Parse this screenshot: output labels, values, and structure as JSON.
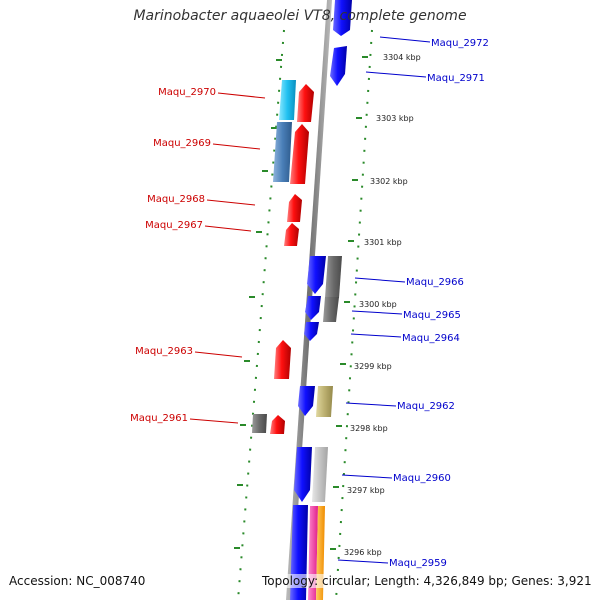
{
  "title": "Marinobacter aquaeolei VT8, complete genome",
  "accession": "Accession: NC_008740",
  "topology": "Topology: circular; Length: 4,326,849 bp; Genes: 3,921",
  "colors": {
    "backbone": "#808080",
    "forward_label": "#0000cc",
    "reverse_label": "#cc0000",
    "gc_ticks": "#2a8a2a"
  },
  "ticks": [
    {
      "label": "3304 kbp"
    },
    {
      "label": "3303 kbp"
    },
    {
      "label": "3302 kbp"
    },
    {
      "label": "3301 kbp"
    },
    {
      "label": "3300 kbp"
    },
    {
      "label": "3299 kbp"
    },
    {
      "label": "3298 kbp"
    },
    {
      "label": "3297 kbp"
    },
    {
      "label": "3296 kbp"
    }
  ],
  "gene_labels_forward": [
    {
      "name": "Maqu_2972"
    },
    {
      "name": "Maqu_2971"
    },
    {
      "name": "Maqu_2966"
    },
    {
      "name": "Maqu_2965"
    },
    {
      "name": "Maqu_2964"
    },
    {
      "name": "Maqu_2962"
    },
    {
      "name": "Maqu_2960"
    },
    {
      "name": "Maqu_2959"
    }
  ],
  "gene_labels_reverse": [
    {
      "name": "Maqu_2970"
    },
    {
      "name": "Maqu_2969"
    },
    {
      "name": "Maqu_2968"
    },
    {
      "name": "Maqu_2967"
    },
    {
      "name": "Maqu_2963"
    },
    {
      "name": "Maqu_2961"
    }
  ]
}
